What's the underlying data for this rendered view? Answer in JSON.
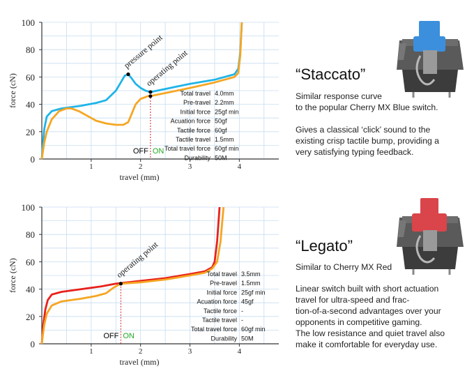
{
  "chart_data": [
    {
      "type": "line",
      "xlabel": "travel (mm)",
      "ylabel": "force (cN)",
      "xlim": [
        0,
        4.8
      ],
      "ylim": [
        0,
        100
      ],
      "x_ticks": [
        "1",
        "2",
        "3",
        "4"
      ],
      "y_ticks": [
        "0",
        "20",
        "40",
        "60",
        "80",
        "100"
      ],
      "grid": true,
      "series": [
        {
          "name": "",
          "color": "#1fb4e8",
          "points": [
            [
              0,
              0
            ],
            [
              0.02,
              10
            ],
            [
              0.05,
              22
            ],
            [
              0.1,
              31
            ],
            [
              0.2,
              35
            ],
            [
              0.4,
              37
            ],
            [
              0.8,
              39
            ],
            [
              1.1,
              41
            ],
            [
              1.3,
              43
            ],
            [
              1.5,
              50
            ],
            [
              1.6,
              56
            ],
            [
              1.68,
              61
            ],
            [
              1.75,
              62
            ],
            [
              1.82,
              59
            ],
            [
              1.9,
              55
            ],
            [
              2.0,
              52
            ],
            [
              2.1,
              50
            ],
            [
              2.2,
              49
            ],
            [
              2.6,
              52
            ],
            [
              3.0,
              55
            ],
            [
              3.5,
              58
            ],
            [
              3.9,
              62
            ],
            [
              3.98,
              66
            ],
            [
              4.02,
              78
            ],
            [
              4.05,
              100
            ]
          ]
        },
        {
          "name": "",
          "color": "#f5a623",
          "points": [
            [
              0,
              0
            ],
            [
              0.02,
              5
            ],
            [
              0.05,
              12
            ],
            [
              0.1,
              20
            ],
            [
              0.2,
              29
            ],
            [
              0.35,
              35
            ],
            [
              0.5,
              37
            ],
            [
              0.6,
              37
            ],
            [
              0.75,
              35
            ],
            [
              0.9,
              32
            ],
            [
              1.1,
              28
            ],
            [
              1.3,
              26
            ],
            [
              1.5,
              25
            ],
            [
              1.65,
              25
            ],
            [
              1.75,
              27
            ],
            [
              1.82,
              33
            ],
            [
              1.9,
              40
            ],
            [
              2.0,
              44
            ],
            [
              2.15,
              46
            ],
            [
              2.2,
              46
            ],
            [
              2.6,
              49
            ],
            [
              3.0,
              52
            ],
            [
              3.5,
              56
            ],
            [
              3.9,
              60
            ],
            [
              3.98,
              63
            ],
            [
              4.02,
              76
            ],
            [
              4.05,
              100
            ]
          ]
        }
      ],
      "annotations": [
        {
          "text": "pressure point",
          "x": 1.75,
          "y": 62
        },
        {
          "text": "operating point",
          "x": 2.2,
          "y": 49
        },
        {
          "text": "OFF",
          "color": "#000000"
        },
        {
          "text": "ON",
          "color": "#22aa22"
        }
      ],
      "specs": [
        {
          "label": "Total travel",
          "value": "4.0mm"
        },
        {
          "label": "Pre-travel",
          "value": "2.2mm"
        },
        {
          "label": "Initial force",
          "value": "25gf   min"
        },
        {
          "label": "Acuation force",
          "value": "50gf"
        },
        {
          "label": "Tactile force",
          "value": "60gf"
        },
        {
          "label": "Tactile travel",
          "value": "1.5mm"
        },
        {
          "label": "Total travel force",
          "value": "60gf   min"
        },
        {
          "label": "Durability",
          "value": "50M"
        }
      ]
    },
    {
      "type": "line",
      "xlabel": "travel (mm)",
      "ylabel": "force (cN)",
      "xlim": [
        0,
        4.8
      ],
      "ylim": [
        0,
        100
      ],
      "x_ticks": [
        "1",
        "2",
        "3",
        "4"
      ],
      "y_ticks": [
        "0",
        "20",
        "40",
        "60",
        "80",
        "100"
      ],
      "grid": true,
      "series": [
        {
          "name": "",
          "color": "#e8211b",
          "points": [
            [
              0,
              0
            ],
            [
              0.03,
              14
            ],
            [
              0.07,
              25
            ],
            [
              0.12,
              32
            ],
            [
              0.2,
              36
            ],
            [
              0.4,
              38
            ],
            [
              0.8,
              40
            ],
            [
              1.2,
              42
            ],
            [
              1.5,
              44
            ],
            [
              2.0,
              46
            ],
            [
              2.5,
              48
            ],
            [
              3.0,
              51
            ],
            [
              3.3,
              53
            ],
            [
              3.45,
              56
            ],
            [
              3.5,
              60
            ],
            [
              3.55,
              75
            ],
            [
              3.6,
              100
            ]
          ]
        },
        {
          "name": "",
          "color": "#f5a623",
          "points": [
            [
              0,
              0
            ],
            [
              0.02,
              6
            ],
            [
              0.05,
              14
            ],
            [
              0.1,
              22
            ],
            [
              0.2,
              28
            ],
            [
              0.4,
              31
            ],
            [
              0.8,
              33
            ],
            [
              1.1,
              35
            ],
            [
              1.3,
              37
            ],
            [
              1.45,
              41
            ],
            [
              1.55,
              43
            ],
            [
              1.6,
              44
            ],
            [
              2.0,
              45
            ],
            [
              2.5,
              47
            ],
            [
              3.0,
              50
            ],
            [
              3.3,
              52
            ],
            [
              3.45,
              55
            ],
            [
              3.55,
              60
            ],
            [
              3.62,
              75
            ],
            [
              3.68,
              100
            ]
          ]
        }
      ],
      "annotations": [
        {
          "text": "operating point",
          "x": 1.6,
          "y": 44
        },
        {
          "text": "OFF",
          "color": "#000000"
        },
        {
          "text": "ON",
          "color": "#22aa22"
        }
      ],
      "specs": [
        {
          "label": "Total travel",
          "value": "3.5mm"
        },
        {
          "label": "Pre-travel",
          "value": "1.5mm"
        },
        {
          "label": "Initial force",
          "value": "25gf   min"
        },
        {
          "label": "Acuation force",
          "value": "45gf"
        },
        {
          "label": "Tactile force",
          "value": "-"
        },
        {
          "label": "Tactile travel",
          "value": "-"
        },
        {
          "label": "Total travel force",
          "value": "60gf   min"
        },
        {
          "label": "Durability",
          "value": "50M"
        }
      ]
    }
  ],
  "staccato": {
    "title": "“Staccato”",
    "desc1_line1": "Similar response curve",
    "desc1_line2": "to the popular Cherry MX Blue switch.",
    "desc2_line1": "Gives a classical ‘click’ sound to the",
    "desc2_line2": "existing crisp tactile bump, providing a",
    "desc2_line3": "very satisfying typing feedback.",
    "stem_color": "#3b8fdc"
  },
  "legato": {
    "title": "“Legato”",
    "desc1": "Similar to Cherry MX Red",
    "desc2_line1": "Linear switch built with short actuation",
    "desc2_line2": "travel for ultra-speed and frac-",
    "desc2_line3": "tion-of-a-second advantages over your",
    "desc2_line4": "opponents in competitive gaming.",
    "desc2_line5": "The low resistance and quiet travel also",
    "desc2_line6": "make it comfortable for everyday use.",
    "stem_color": "#d9454a"
  }
}
